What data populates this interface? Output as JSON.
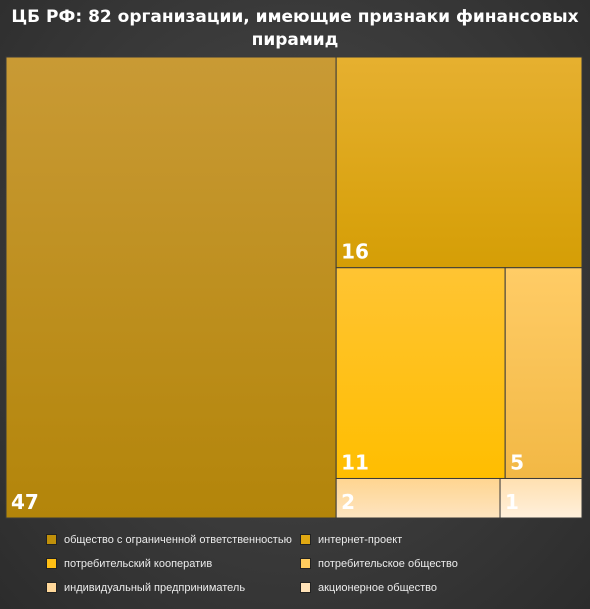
{
  "title": "ЦБ РФ: 82 организации, имеющие признаки финансовых пирамид",
  "chart_data": {
    "type": "treemap",
    "title": "ЦБ РФ: 82 организации, имеющие признаки финансовых пирамид",
    "total": 82,
    "items": [
      {
        "name": "общество с ограниченной ответственностью",
        "value": 47,
        "label": "47",
        "color": "#c0900a"
      },
      {
        "name": "интернет-проект",
        "value": 16,
        "label": "16",
        "color": "#e0a812"
      },
      {
        "name": "потребительский кооператив",
        "value": 11,
        "label": "11",
        "color": "#ffbf15"
      },
      {
        "name": "потребительское общество",
        "value": 5,
        "label": "5",
        "color": "#ffcc5e"
      },
      {
        "name": "индивидуальный предприниматель",
        "value": 2,
        "label": "2",
        "color": "#ffd89a"
      },
      {
        "name": "акционерное общество",
        "value": 1,
        "label": "1",
        "color": "#ffe2b8"
      }
    ],
    "legend_position": "bottom"
  }
}
